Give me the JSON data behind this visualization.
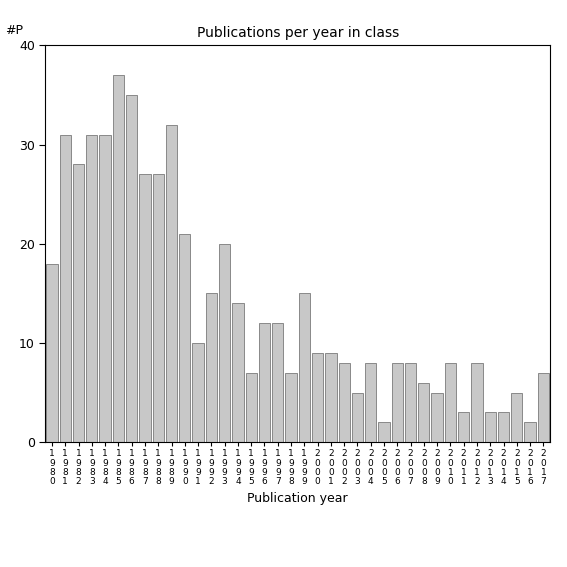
{
  "title": "Publications per year in class",
  "xlabel": "Publication year",
  "ylabel_above": "#P",
  "bar_color": "#c8c8c8",
  "bar_edgecolor": "#666666",
  "ylim": [
    0,
    40
  ],
  "yticks": [
    0,
    10,
    20,
    30,
    40
  ],
  "categories": [
    "1980",
    "1981",
    "1982",
    "1983",
    "1984",
    "1985",
    "1986",
    "1987",
    "1988",
    "1989",
    "1990",
    "1991",
    "1992",
    "1993",
    "1994",
    "1995",
    "1996",
    "1997",
    "1998",
    "1999",
    "2000",
    "2001",
    "2002",
    "2003",
    "2004",
    "2005",
    "2006",
    "2007",
    "2008",
    "2009",
    "2010",
    "2011",
    "2012",
    "2013",
    "2014",
    "2015",
    "2016",
    "2017"
  ],
  "values": [
    18,
    31,
    28,
    31,
    31,
    37,
    35,
    27,
    27,
    32,
    21,
    10,
    15,
    20,
    14,
    7,
    12,
    12,
    7,
    15,
    9,
    9,
    8,
    5,
    8,
    2,
    8,
    8,
    6,
    5,
    8,
    3,
    8,
    3,
    3,
    5,
    2,
    7
  ]
}
